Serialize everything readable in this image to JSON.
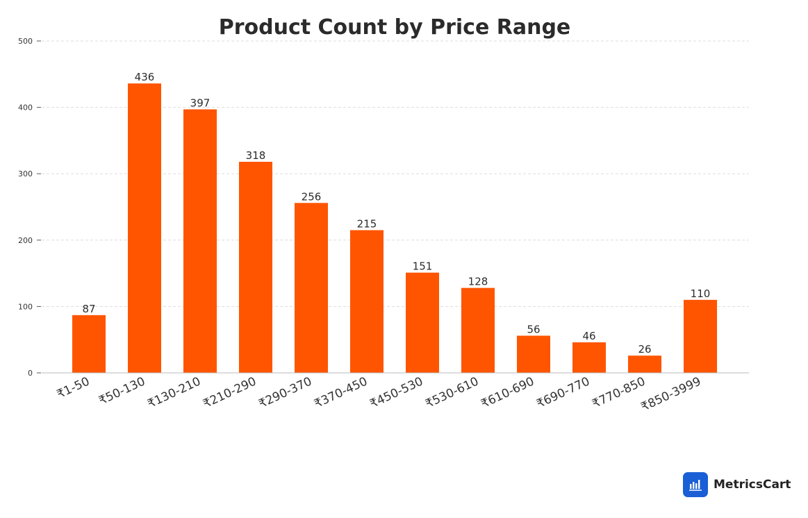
{
  "chart_data": {
    "type": "bar",
    "title": "Product Count by Price Range",
    "xlabel": "",
    "ylabel": "",
    "categories": [
      "₹1-50",
      "₹50-130",
      "₹130-210",
      "₹210-290",
      "₹290-370",
      "₹370-450",
      "₹450-530",
      "₹530-610",
      "₹610-690",
      "₹690-770",
      "₹770-850",
      "₹850-3999"
    ],
    "values": [
      87,
      436,
      397,
      318,
      256,
      215,
      151,
      128,
      56,
      46,
      26,
      110
    ],
    "ylim": [
      0,
      500
    ],
    "yticks": [
      0,
      100,
      200,
      300,
      400,
      500
    ],
    "grid": true,
    "bar_color": "#ff5500",
    "data_labels": true
  },
  "brand": {
    "name": "MetricsCart",
    "icon": "bar-chart-icon",
    "icon_color": "#1a5fd6"
  }
}
